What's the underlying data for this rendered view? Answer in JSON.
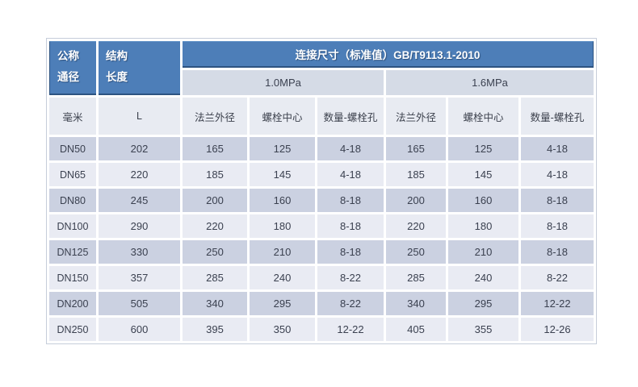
{
  "table": {
    "header": {
      "nominal_diameter": [
        "公称",
        "通径"
      ],
      "structure_length": [
        "结构",
        "长度"
      ],
      "connection_title": "连接尺寸（标准值）GB/T9113.1-2010",
      "pressure_1": "1.0MPa",
      "pressure_2": "1.6MPa",
      "units": [
        "毫米",
        "L",
        "法兰外径",
        "螺栓中心",
        "数量-螺栓孔",
        "法兰外径",
        "螺栓中心",
        "数量-螺栓孔"
      ]
    },
    "rows": [
      [
        "DN50",
        "202",
        "165",
        "125",
        "4-18",
        "165",
        "125",
        "4-18"
      ],
      [
        "DN65",
        "220",
        "185",
        "145",
        "4-18",
        "185",
        "145",
        "4-18"
      ],
      [
        "DN80",
        "245",
        "200",
        "160",
        "8-18",
        "200",
        "160",
        "8-18"
      ],
      [
        "DN100",
        "290",
        "220",
        "180",
        "8-18",
        "220",
        "180",
        "8-18"
      ],
      [
        "DN125",
        "330",
        "250",
        "210",
        "8-18",
        "250",
        "210",
        "8-18"
      ],
      [
        "DN150",
        "357",
        "285",
        "240",
        "8-22",
        "285",
        "240",
        "8-22"
      ],
      [
        "DN200",
        "505",
        "340",
        "295",
        "8-22",
        "340",
        "295",
        "12-22"
      ],
      [
        "DN250",
        "600",
        "395",
        "350",
        "12-22",
        "405",
        "355",
        "12-26"
      ]
    ],
    "colors": {
      "header_blue": "#4d7eb8",
      "header_blue_border": "#2d5381",
      "pressure_row_bg": "#d5dbe6",
      "unit_row_bg": "#e8ebf2",
      "band_dark_bg": "#cbd1e1",
      "band_light_bg": "#e9ebf3",
      "text_dark": "#3b4150",
      "grid_gap": "#ffffff"
    }
  }
}
